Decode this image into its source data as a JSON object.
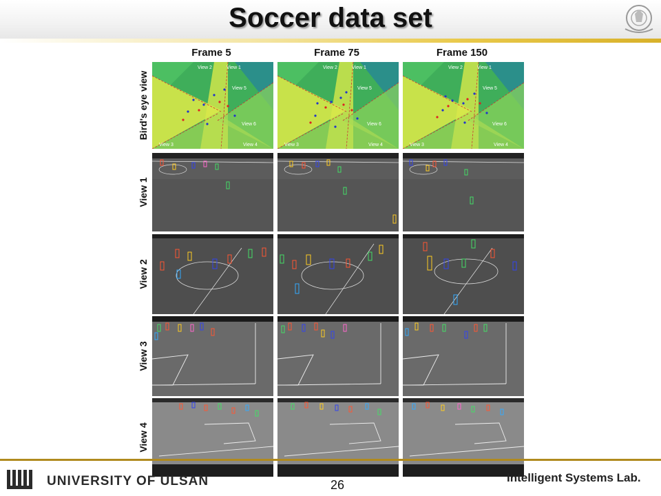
{
  "slide": {
    "title": "Soccer data set",
    "page_number": "26",
    "university": "UNIVERSITY OF ULSAN",
    "lab": "Intelligent Systems Lab."
  },
  "figure": {
    "columns": [
      "Frame 5",
      "Frame 75",
      "Frame 150"
    ],
    "rows": [
      "Bird's eye view",
      "View 1",
      "View 2",
      "View 3",
      "View 4"
    ],
    "birdseye_labels": [
      "View 2",
      "View 1",
      "View 5",
      "View 6",
      "View 3",
      "View 4"
    ],
    "colors": {
      "pitch_green": "#3fae5a",
      "pitch_teal": "#2b8f8a",
      "pitch_yellow": "#d9e84a",
      "field_gray": "#555555",
      "player_blue": "#2233cc",
      "player_red": "#dd2222",
      "box_colors": [
        "#ff5533",
        "#33aaff",
        "#ffcc22",
        "#44dd66",
        "#ff66cc",
        "#3344ee"
      ]
    }
  }
}
